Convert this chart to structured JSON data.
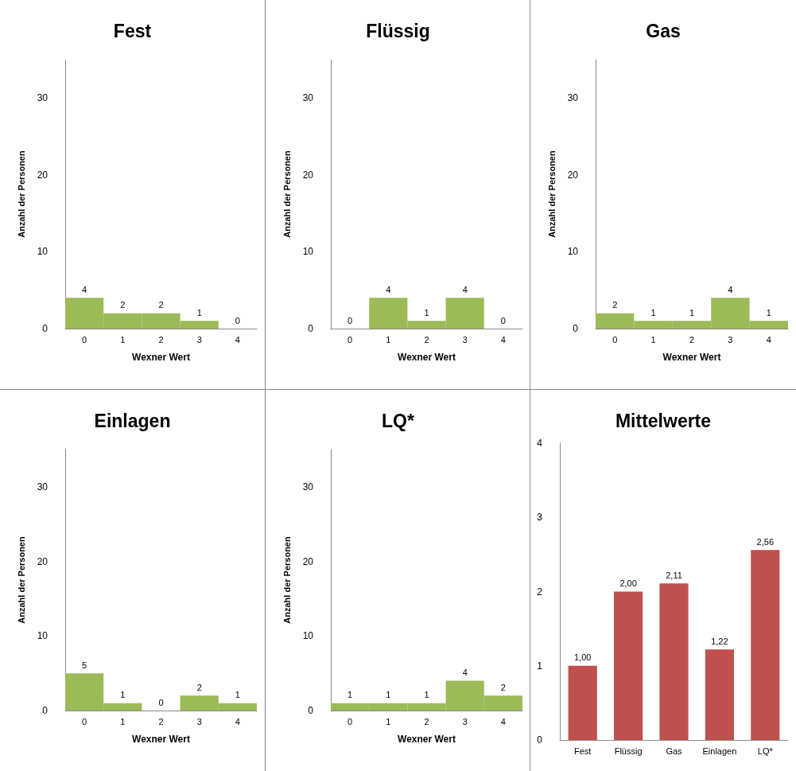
{
  "chart_data": [
    {
      "type": "bar",
      "title": "Fest",
      "xlabel": "Wexner Wert",
      "ylabel": "Anzahl der Personen",
      "categories": [
        "0",
        "1",
        "2",
        "3",
        "4"
      ],
      "values": [
        4,
        2,
        2,
        1,
        0
      ],
      "color": "#9bbb59",
      "ylim": [
        0,
        35
      ],
      "yticks": [
        0,
        10,
        20,
        30
      ],
      "data_labels": true,
      "grid": false
    },
    {
      "type": "bar",
      "title": "Flüssig",
      "xlabel": "Wexner Wert",
      "ylabel": "Anzahl der Personen",
      "categories": [
        "0",
        "1",
        "2",
        "3",
        "4"
      ],
      "values": [
        0,
        4,
        1,
        4,
        0
      ],
      "color": "#9bbb59",
      "ylim": [
        0,
        35
      ],
      "yticks": [
        0,
        10,
        20,
        30
      ],
      "data_labels": true,
      "grid": false
    },
    {
      "type": "bar",
      "title": "Gas",
      "xlabel": "Wexner Wert",
      "ylabel": "Anzahl der Personen",
      "categories": [
        "0",
        "1",
        "2",
        "3",
        "4"
      ],
      "values": [
        2,
        1,
        1,
        4,
        1
      ],
      "color": "#9bbb59",
      "ylim": [
        0,
        35
      ],
      "yticks": [
        0,
        10,
        20,
        30
      ],
      "data_labels": true,
      "grid": false
    },
    {
      "type": "bar",
      "title": "Einlagen",
      "xlabel": "Wexner Wert",
      "ylabel": "Anzahl der Personen",
      "categories": [
        "0",
        "1",
        "2",
        "3",
        "4"
      ],
      "values": [
        5,
        1,
        0,
        2,
        1
      ],
      "color": "#9bbb59",
      "ylim": [
        0,
        35
      ],
      "yticks": [
        0,
        10,
        20,
        30
      ],
      "data_labels": true,
      "grid": false
    },
    {
      "type": "bar",
      "title": "LQ*",
      "xlabel": "Wexner Wert",
      "ylabel": "Anzahl der Personen",
      "categories": [
        "0",
        "1",
        "2",
        "3",
        "4"
      ],
      "values": [
        1,
        1,
        1,
        4,
        2
      ],
      "color": "#9bbb59",
      "ylim": [
        0,
        35
      ],
      "yticks": [
        0,
        10,
        20,
        30
      ],
      "data_labels": true,
      "grid": false
    },
    {
      "type": "bar",
      "title": "Mittelwerte",
      "categories": [
        "Fest",
        "Flüssig",
        "Gas",
        "Einlagen",
        "LQ*"
      ],
      "values": [
        1.0,
        2.0,
        2.11,
        1.22,
        2.56
      ],
      "value_labels": [
        "1,00",
        "2,00",
        "2,11",
        "1,22",
        "2,56"
      ],
      "color": "#c0504d",
      "ylim": [
        0,
        4
      ],
      "yticks": [
        0,
        1,
        2,
        3,
        4
      ],
      "grid": false
    }
  ]
}
